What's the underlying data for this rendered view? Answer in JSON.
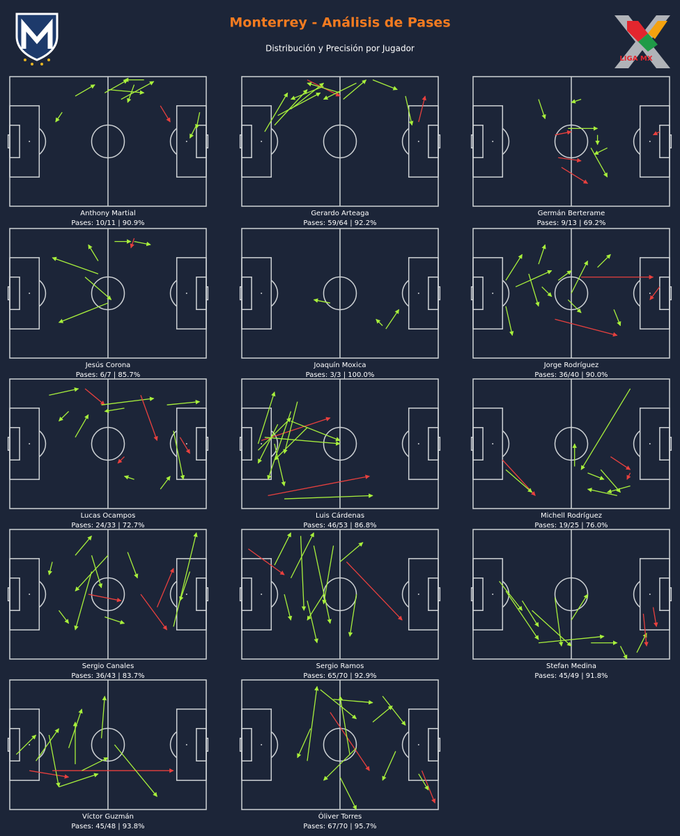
{
  "header": {
    "title": "Monterrey - Análisis de Pases",
    "subtitle": "Distribución y Precisión por Jugador",
    "logo_text": "LIGA MX"
  },
  "pass_colors": {
    "completed": "#a8f03c",
    "failed": "#e8403e"
  },
  "chart_data": [
    {
      "type": "passes",
      "title": "Anthony Martial",
      "subtitle": "Pases: 10/11 | 90.9%",
      "xlim": [
        0,
        120
      ],
      "ylim": [
        0,
        80
      ],
      "passes": [
        [
          58,
          10,
          72,
          2,
          1
        ],
        [
          68,
          14,
          88,
          3,
          1
        ],
        [
          76,
          5,
          72,
          16,
          1
        ],
        [
          40,
          12,
          52,
          5,
          1
        ],
        [
          32,
          22,
          28,
          28,
          1
        ],
        [
          60,
          8,
          82,
          10,
          1
        ],
        [
          92,
          18,
          98,
          28,
          0
        ],
        [
          114,
          30,
          110,
          38,
          1
        ],
        [
          116,
          22,
          114,
          32,
          1
        ],
        [
          82,
          2,
          70,
          2,
          1
        ]
      ]
    },
    {
      "type": "passes",
      "title": "Gerardo Arteaga",
      "subtitle": "Pases: 59/64 | 92.2%",
      "xlim": [
        0,
        120
      ],
      "ylim": [
        0,
        80
      ],
      "passes": [
        [
          20,
          30,
          40,
          8,
          1
        ],
        [
          30,
          20,
          50,
          4,
          1
        ],
        [
          22,
          24,
          48,
          10,
          1
        ],
        [
          40,
          2,
          60,
          12,
          0
        ],
        [
          50,
          6,
          30,
          14,
          1
        ],
        [
          60,
          10,
          40,
          4,
          1
        ],
        [
          70,
          4,
          50,
          14,
          1
        ],
        [
          80,
          2,
          95,
          8,
          1
        ],
        [
          100,
          12,
          104,
          30,
          1
        ],
        [
          108,
          28,
          112,
          12,
          0
        ],
        [
          14,
          34,
          28,
          10,
          1
        ],
        [
          62,
          14,
          76,
          2,
          1
        ]
      ]
    },
    {
      "type": "passes",
      "title": "Germán Berterame",
      "subtitle": "Pases: 9/13 | 69.2%",
      "xlim": [
        0,
        120
      ],
      "ylim": [
        0,
        80
      ],
      "passes": [
        [
          40,
          14,
          44,
          26,
          1
        ],
        [
          66,
          14,
          60,
          16,
          1
        ],
        [
          58,
          32,
          76,
          32,
          1
        ],
        [
          50,
          36,
          60,
          34,
          0
        ],
        [
          52,
          50,
          66,
          52,
          0
        ],
        [
          54,
          56,
          70,
          66,
          0
        ],
        [
          72,
          44,
          82,
          62,
          1
        ],
        [
          82,
          44,
          74,
          48,
          1
        ],
        [
          76,
          36,
          76,
          42,
          1
        ],
        [
          114,
          34,
          110,
          36,
          0
        ]
      ]
    },
    {
      "type": "passes",
      "title": "Jesús Corona",
      "subtitle": "Pases: 6/7 | 85.7%",
      "xlim": [
        0,
        120
      ],
      "ylim": [
        0,
        80
      ],
      "passes": [
        [
          54,
          28,
          26,
          18,
          1
        ],
        [
          46,
          30,
          62,
          44,
          1
        ],
        [
          60,
          46,
          30,
          58,
          1
        ],
        [
          64,
          8,
          74,
          8,
          1
        ],
        [
          54,
          20,
          48,
          10,
          1
        ],
        [
          76,
          6,
          74,
          12,
          0
        ],
        [
          76,
          8,
          86,
          10,
          1
        ]
      ]
    },
    {
      "type": "passes",
      "title": "Joaquín Moxica",
      "subtitle": "Pases: 3/3 | 100.0%",
      "xlim": [
        0,
        120
      ],
      "ylim": [
        0,
        80
      ],
      "passes": [
        [
          54,
          46,
          44,
          44,
          1
        ],
        [
          88,
          62,
          96,
          50,
          1
        ],
        [
          86,
          60,
          82,
          56,
          1
        ]
      ]
    },
    {
      "type": "passes",
      "title": "Jorge Rodríguez",
      "subtitle": "Pases: 36/40 | 90.0%",
      "xlim": [
        0,
        120
      ],
      "ylim": [
        0,
        80
      ],
      "passes": [
        [
          20,
          32,
          30,
          16,
          1
        ],
        [
          26,
          36,
          48,
          26,
          1
        ],
        [
          34,
          28,
          40,
          48,
          1
        ],
        [
          40,
          22,
          44,
          10,
          1
        ],
        [
          42,
          36,
          48,
          42,
          1
        ],
        [
          52,
          32,
          60,
          26,
          1
        ],
        [
          60,
          40,
          70,
          20,
          1
        ],
        [
          66,
          30,
          110,
          30,
          0
        ],
        [
          76,
          24,
          84,
          16,
          1
        ],
        [
          50,
          56,
          88,
          66,
          0
        ],
        [
          86,
          50,
          90,
          60,
          1
        ],
        [
          114,
          36,
          108,
          44,
          0
        ],
        [
          58,
          44,
          66,
          52,
          1
        ],
        [
          20,
          48,
          24,
          66,
          1
        ]
      ]
    },
    {
      "type": "passes",
      "title": "Lucas Ocampos",
      "subtitle": "Pases: 24/33 | 72.7%",
      "xlim": [
        0,
        120
      ],
      "ylim": [
        0,
        80
      ],
      "passes": [
        [
          24,
          10,
          42,
          6,
          1
        ],
        [
          46,
          6,
          58,
          16,
          0
        ],
        [
          56,
          16,
          88,
          12,
          1
        ],
        [
          70,
          18,
          58,
          20,
          1
        ],
        [
          80,
          10,
          90,
          38,
          0
        ],
        [
          100,
          32,
          106,
          62,
          1
        ],
        [
          104,
          36,
          110,
          46,
          0
        ],
        [
          92,
          68,
          98,
          60,
          1
        ],
        [
          76,
          62,
          70,
          60,
          1
        ],
        [
          70,
          48,
          66,
          52,
          0
        ],
        [
          40,
          36,
          48,
          22,
          1
        ],
        [
          36,
          20,
          30,
          26,
          1
        ],
        [
          96,
          16,
          116,
          14,
          1
        ]
      ]
    },
    {
      "type": "passes",
      "title": "Luis Cárdenas",
      "subtitle": "Pases: 46/53 | 86.8%",
      "xlim": [
        0,
        120
      ],
      "ylim": [
        0,
        80
      ],
      "passes": [
        [
          10,
          40,
          20,
          8,
          1
        ],
        [
          12,
          38,
          54,
          24,
          0
        ],
        [
          14,
          36,
          60,
          40,
          1
        ],
        [
          10,
          44,
          30,
          24,
          1
        ],
        [
          20,
          40,
          26,
          66,
          1
        ],
        [
          22,
          28,
          10,
          52,
          1
        ],
        [
          30,
          20,
          16,
          62,
          1
        ],
        [
          16,
          72,
          78,
          60,
          0
        ],
        [
          26,
          74,
          80,
          72,
          1
        ],
        [
          30,
          26,
          60,
          38,
          1
        ],
        [
          40,
          30,
          20,
          50,
          1
        ],
        [
          34,
          14,
          26,
          46,
          1
        ]
      ]
    },
    {
      "type": "passes",
      "title": "Michell Rodríguez",
      "subtitle": "Pases: 19/25 | 76.0%",
      "xlim": [
        0,
        120
      ],
      "ylim": [
        0,
        80
      ],
      "passes": [
        [
          96,
          6,
          66,
          56,
          1
        ],
        [
          62,
          54,
          62,
          40,
          1
        ],
        [
          70,
          58,
          80,
          62,
          1
        ],
        [
          78,
          56,
          90,
          70,
          1
        ],
        [
          18,
          50,
          38,
          72,
          0
        ],
        [
          20,
          56,
          36,
          70,
          1
        ],
        [
          84,
          48,
          96,
          56,
          0
        ],
        [
          96,
          58,
          94,
          62,
          0
        ],
        [
          88,
          72,
          70,
          68,
          1
        ],
        [
          96,
          66,
          82,
          70,
          1
        ]
      ]
    },
    {
      "type": "passes",
      "title": "Sergio Canales",
      "subtitle": "Pases: 36/43 | 83.7%",
      "xlim": [
        0,
        120
      ],
      "ylim": [
        0,
        80
      ],
      "passes": [
        [
          26,
          20,
          24,
          28,
          1
        ],
        [
          40,
          16,
          50,
          4,
          1
        ],
        [
          50,
          16,
          56,
          36,
          1
        ],
        [
          48,
          40,
          68,
          44,
          0
        ],
        [
          50,
          26,
          40,
          62,
          1
        ],
        [
          58,
          54,
          70,
          58,
          1
        ],
        [
          72,
          14,
          78,
          30,
          1
        ],
        [
          90,
          48,
          100,
          24,
          0
        ],
        [
          100,
          60,
          114,
          2,
          1
        ],
        [
          80,
          40,
          96,
          62,
          0
        ],
        [
          30,
          50,
          36,
          58,
          1
        ],
        [
          110,
          26,
          104,
          44,
          1
        ],
        [
          60,
          16,
          40,
          38,
          1
        ]
      ]
    },
    {
      "type": "passes",
      "title": "Sergio Ramos",
      "subtitle": "Pases: 65/70 | 92.9%",
      "xlim": [
        0,
        120
      ],
      "ylim": [
        0,
        80
      ],
      "passes": [
        [
          4,
          12,
          26,
          28,
          0
        ],
        [
          20,
          22,
          30,
          2,
          1
        ],
        [
          30,
          30,
          44,
          2,
          1
        ],
        [
          36,
          4,
          38,
          50,
          1
        ],
        [
          44,
          10,
          54,
          58,
          1
        ],
        [
          56,
          10,
          50,
          46,
          1
        ],
        [
          60,
          20,
          74,
          8,
          1
        ],
        [
          64,
          20,
          98,
          56,
          0
        ],
        [
          50,
          40,
          40,
          56,
          1
        ],
        [
          40,
          44,
          46,
          70,
          1
        ],
        [
          26,
          40,
          30,
          56,
          1
        ],
        [
          70,
          40,
          66,
          66,
          1
        ]
      ]
    },
    {
      "type": "passes",
      "title": "Stefan Medina",
      "subtitle": "Pases: 45/49 | 91.8%",
      "xlim": [
        0,
        120
      ],
      "ylim": [
        0,
        80
      ],
      "passes": [
        [
          16,
          32,
          30,
          50,
          1
        ],
        [
          20,
          38,
          40,
          68,
          1
        ],
        [
          30,
          44,
          40,
          60,
          1
        ],
        [
          36,
          50,
          60,
          72,
          1
        ],
        [
          50,
          42,
          54,
          72,
          1
        ],
        [
          60,
          56,
          70,
          40,
          1
        ],
        [
          40,
          70,
          80,
          66,
          1
        ],
        [
          72,
          70,
          88,
          70,
          1
        ],
        [
          100,
          76,
          106,
          64,
          1
        ],
        [
          104,
          52,
          106,
          72,
          0
        ],
        [
          110,
          48,
          112,
          60,
          0
        ],
        [
          90,
          72,
          94,
          80,
          1
        ]
      ]
    },
    {
      "type": "passes",
      "title": "Víctor Guzmán",
      "subtitle": "Pases: 45/48 | 93.8%",
      "xlim": [
        0,
        120
      ],
      "ylim": [
        0,
        80
      ],
      "passes": [
        [
          4,
          46,
          16,
          34,
          1
        ],
        [
          12,
          56,
          36,
          60,
          0
        ],
        [
          16,
          50,
          30,
          30,
          1
        ],
        [
          24,
          34,
          30,
          66,
          1
        ],
        [
          26,
          56,
          100,
          56,
          0
        ],
        [
          36,
          42,
          44,
          18,
          1
        ],
        [
          40,
          52,
          40,
          26,
          1
        ],
        [
          56,
          36,
          58,
          10,
          1
        ],
        [
          64,
          40,
          90,
          72,
          1
        ],
        [
          30,
          66,
          54,
          58,
          1
        ],
        [
          44,
          56,
          60,
          48,
          1
        ]
      ]
    },
    {
      "type": "passes",
      "title": "Óliver Torres",
      "subtitle": "Pases: 67/70 | 95.7%",
      "xlim": [
        0,
        120
      ],
      "ylim": [
        0,
        80
      ],
      "passes": [
        [
          40,
          50,
          46,
          4,
          1
        ],
        [
          48,
          6,
          70,
          24,
          1
        ],
        [
          56,
          12,
          80,
          14,
          1
        ],
        [
          54,
          20,
          78,
          56,
          0
        ],
        [
          66,
          46,
          60,
          10,
          1
        ],
        [
          70,
          42,
          50,
          62,
          1
        ],
        [
          80,
          26,
          92,
          16,
          1
        ],
        [
          86,
          10,
          100,
          28,
          1
        ],
        [
          110,
          56,
          118,
          76,
          0
        ],
        [
          108,
          58,
          114,
          68,
          1
        ],
        [
          42,
          30,
          34,
          48,
          1
        ],
        [
          60,
          60,
          70,
          80,
          1
        ],
        [
          94,
          44,
          86,
          62,
          1
        ]
      ]
    }
  ]
}
